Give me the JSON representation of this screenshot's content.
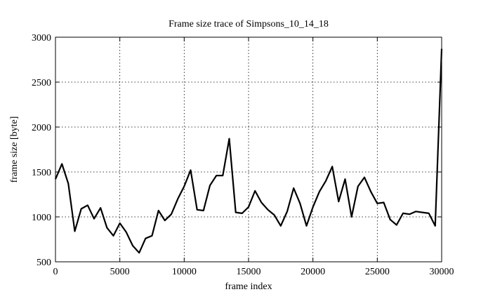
{
  "chart_data": {
    "type": "line",
    "title": "Frame size trace of Simpsons_10_14_18",
    "xlabel": "frame index",
    "ylabel": "frame size [byte]",
    "xlim": [
      0,
      30000
    ],
    "ylim": [
      500,
      3000
    ],
    "xticks": [
      0,
      5000,
      10000,
      15000,
      20000,
      25000,
      30000
    ],
    "yticks": [
      500,
      1000,
      1500,
      2000,
      2500,
      3000
    ],
    "grid": true,
    "line_color": "#000000",
    "series": [
      {
        "x": [
          0,
          500,
          1000,
          1500,
          2000,
          2500,
          3000,
          3500,
          4000,
          4500,
          5000,
          5500,
          6000,
          6500,
          7000,
          7500,
          8000,
          8500,
          9000,
          9500,
          10000,
          10500,
          11000,
          11500,
          12000,
          12500,
          13000,
          13500,
          14000,
          14500,
          15000,
          15500,
          16000,
          16500,
          17000,
          17500,
          18000,
          18500,
          19000,
          19500,
          20000,
          20500,
          21000,
          21500,
          22000,
          22500,
          23000,
          23500,
          24000,
          24500,
          25000,
          25500,
          26000,
          26500,
          27000,
          27500,
          28000,
          28500,
          29000,
          29500,
          30000
        ],
        "values": [
          1420,
          1590,
          1370,
          840,
          1090,
          1130,
          980,
          1100,
          880,
          790,
          930,
          830,
          680,
          600,
          760,
          790,
          1070,
          960,
          1030,
          1200,
          1340,
          1520,
          1080,
          1070,
          1350,
          1460,
          1460,
          1870,
          1050,
          1040,
          1110,
          1290,
          1160,
          1080,
          1020,
          900,
          1060,
          1320,
          1150,
          900,
          1110,
          1280,
          1400,
          1560,
          1170,
          1420,
          1000,
          1340,
          1440,
          1280,
          1150,
          1160,
          970,
          910,
          1040,
          1030,
          1060,
          1050,
          1040,
          900,
          2870
        ]
      }
    ]
  }
}
